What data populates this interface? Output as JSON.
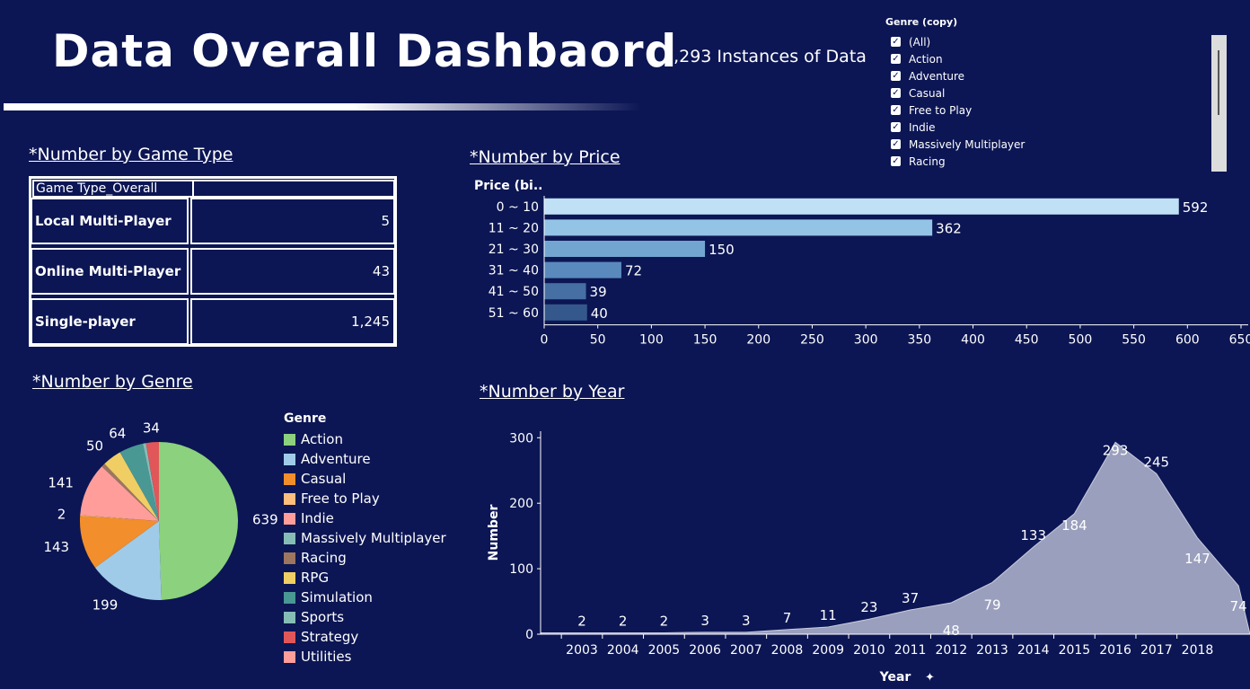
{
  "title": "Data Overall Dashbaord",
  "instances_text": "1,293 Instances of Data",
  "filter": {
    "title": "Genre (copy)",
    "items": [
      "(All)",
      "Action",
      "Adventure",
      "Casual",
      "Free to Play",
      "Indie",
      "Massively Multiplayer",
      "Racing"
    ],
    "check_glyph": "✓"
  },
  "sections": {
    "game_type": "*Number by Game Type",
    "price": "*Number by Price",
    "genre": "*Number by Genre",
    "year": "*Number by Year"
  },
  "game_type_table": {
    "header": "Game Type_Overall",
    "rows": [
      {
        "label": "Local Multi-Player",
        "value": "5"
      },
      {
        "label": "Online Multi-Player",
        "value": "43"
      },
      {
        "label": "Single-player",
        "value": "1,245"
      }
    ]
  },
  "chart_data": [
    {
      "type": "bar",
      "orientation": "horizontal",
      "ylabel": "Price (bi..",
      "categories": [
        "0 ~ 10",
        "11 ~ 20",
        "21 ~ 30",
        "31 ~ 40",
        "41 ~ 50",
        "51 ~ 60"
      ],
      "values": [
        592,
        362,
        150,
        72,
        39,
        40
      ],
      "bar_colors": [
        "#bfe0f5",
        "#93c4e5",
        "#72a6d1",
        "#5a8abd",
        "#466fa4",
        "#34588c"
      ],
      "xlim": [
        0,
        650
      ],
      "xticks": [
        0,
        50,
        100,
        150,
        200,
        250,
        300,
        350,
        400,
        450,
        500,
        550,
        600,
        650
      ]
    },
    {
      "type": "pie",
      "legend_title": "Genre",
      "legend_position": "right",
      "labels": [
        "Action",
        "Adventure",
        "Casual",
        "Free to Play",
        "Indie",
        "Massively Multiplayer",
        "Racing",
        "RPG",
        "Simulation",
        "Sports",
        "Strategy",
        "Utilities"
      ],
      "colors": [
        "#8cd17d",
        "#a0cbe8",
        "#f28e2b",
        "#ffbe7d",
        "#ff9d9a",
        "#86bcb6",
        "#9d7660",
        "#f1ce63",
        "#499894",
        "#86bcb6",
        "#e15759",
        "#ff9d9a"
      ],
      "slices": [
        {
          "label": "Action",
          "value": 639,
          "color": "#8cd17d"
        },
        {
          "label": "Adventure",
          "value": 199,
          "color": "#a0cbe8"
        },
        {
          "label": "Casual",
          "value": 143,
          "color": "#f28e2b"
        },
        {
          "label": "Free to Play",
          "value": 2,
          "color": "#ffbe7d"
        },
        {
          "label": "Indie",
          "value": 141,
          "color": "#ff9d9a"
        },
        {
          "label": "Racing",
          "value": 10,
          "color": "#9d7660"
        },
        {
          "label": "RPG",
          "value": 50,
          "color": "#f1ce63"
        },
        {
          "label": "Simulation",
          "value": 64,
          "color": "#499894"
        },
        {
          "label": "Sports",
          "value": 8,
          "color": "#86bcb6"
        },
        {
          "label": "Strategy",
          "value": 34,
          "color": "#e15759"
        }
      ],
      "data_labels": [
        "639",
        "199",
        "143",
        "2",
        "141",
        "50",
        "64",
        "34"
      ]
    },
    {
      "type": "area",
      "xlabel": "Year",
      "ylabel": "Number",
      "x": [
        2002,
        2003,
        2004,
        2005,
        2006,
        2007,
        2008,
        2009,
        2010,
        2011,
        2012,
        2013,
        2014,
        2015,
        2016,
        2017,
        2018,
        2019
      ],
      "y": [
        2,
        2,
        2,
        2,
        3,
        3,
        7,
        11,
        23,
        37,
        48,
        79,
        133,
        184,
        293,
        245,
        147,
        74
      ],
      "xticks": [
        2003,
        2004,
        2005,
        2006,
        2007,
        2008,
        2009,
        2010,
        2011,
        2012,
        2013,
        2014,
        2015,
        2016,
        2017,
        2018
      ],
      "yticks": [
        0,
        100,
        200,
        300
      ],
      "ylim": [
        0,
        310
      ],
      "point_labels": [
        {
          "x": 2003,
          "text": "2"
        },
        {
          "x": 2004,
          "text": "2"
        },
        {
          "x": 2005,
          "text": "2"
        },
        {
          "x": 2006,
          "text": "3"
        },
        {
          "x": 2007,
          "text": "3"
        },
        {
          "x": 2008,
          "text": "7"
        },
        {
          "x": 2009,
          "text": "11"
        },
        {
          "x": 2010,
          "text": "23"
        },
        {
          "x": 2011,
          "text": "37"
        },
        {
          "x": 2012,
          "text": "48"
        },
        {
          "x": 2013,
          "text": "79"
        },
        {
          "x": 2014,
          "text": "133"
        },
        {
          "x": 2015,
          "text": "184"
        },
        {
          "x": 2016,
          "text": "293"
        },
        {
          "x": 2017,
          "text": "245"
        },
        {
          "x": 2018,
          "text": "147"
        },
        {
          "x": 2019,
          "text": "74"
        }
      ],
      "area_color": "#9a9fbd"
    }
  ]
}
